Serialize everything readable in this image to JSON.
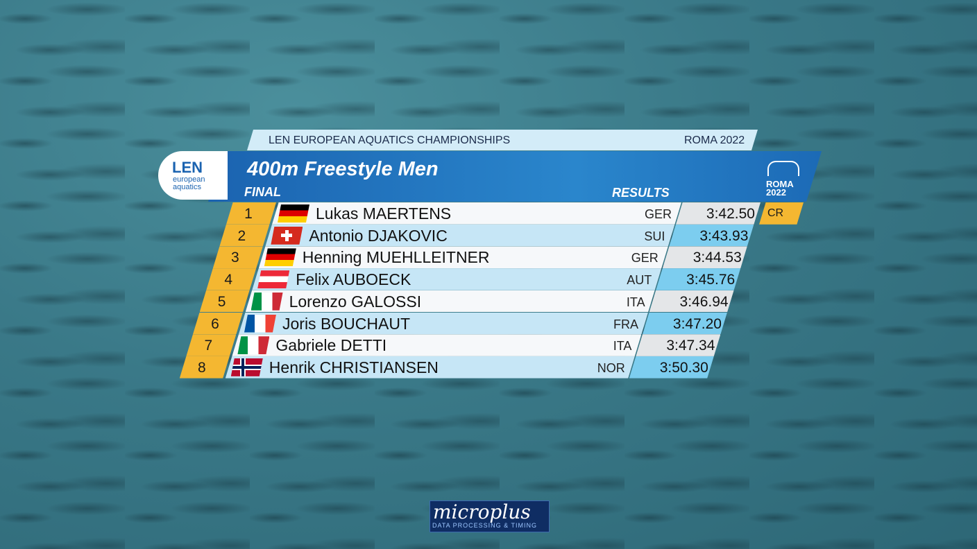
{
  "header": {
    "event": "LEN EUROPEAN AQUATICS CHAMPIONSHIPS",
    "edition": "ROMA 2022"
  },
  "logo": {
    "line1": "LEN",
    "line2": "european",
    "line3": "aquatics"
  },
  "title": "400m Freestyle Men",
  "phase": "FINAL",
  "results_label": "RESULTS",
  "roma_logo": {
    "city": "ROMA",
    "year": "2022"
  },
  "rows": [
    {
      "rank": 1,
      "name": "Lukas MAERTENS",
      "nation": "GER",
      "time": "3:42.50",
      "record": "CR"
    },
    {
      "rank": 2,
      "name": "Antonio DJAKOVIC",
      "nation": "SUI",
      "time": "3:43.93"
    },
    {
      "rank": 3,
      "name": "Henning MUEHLLEITNER",
      "nation": "GER",
      "time": "3:44.53"
    },
    {
      "rank": 4,
      "name": "Felix AUBOECK",
      "nation": "AUT",
      "time": "3:45.76"
    },
    {
      "rank": 5,
      "name": "Lorenzo GALOSSI",
      "nation": "ITA",
      "time": "3:46.94"
    },
    {
      "rank": 6,
      "name": "Joris BOUCHAUT",
      "nation": "FRA",
      "time": "3:47.20"
    },
    {
      "rank": 7,
      "name": "Gabriele DETTI",
      "nation": "ITA",
      "time": "3:47.34"
    },
    {
      "rank": 8,
      "name": "Henrik CHRISTIANSEN",
      "nation": "NOR",
      "time": "3:50.30"
    }
  ],
  "sponsor": {
    "name": "microplus",
    "tagline": "DATA PROCESSING & TIMING"
  }
}
